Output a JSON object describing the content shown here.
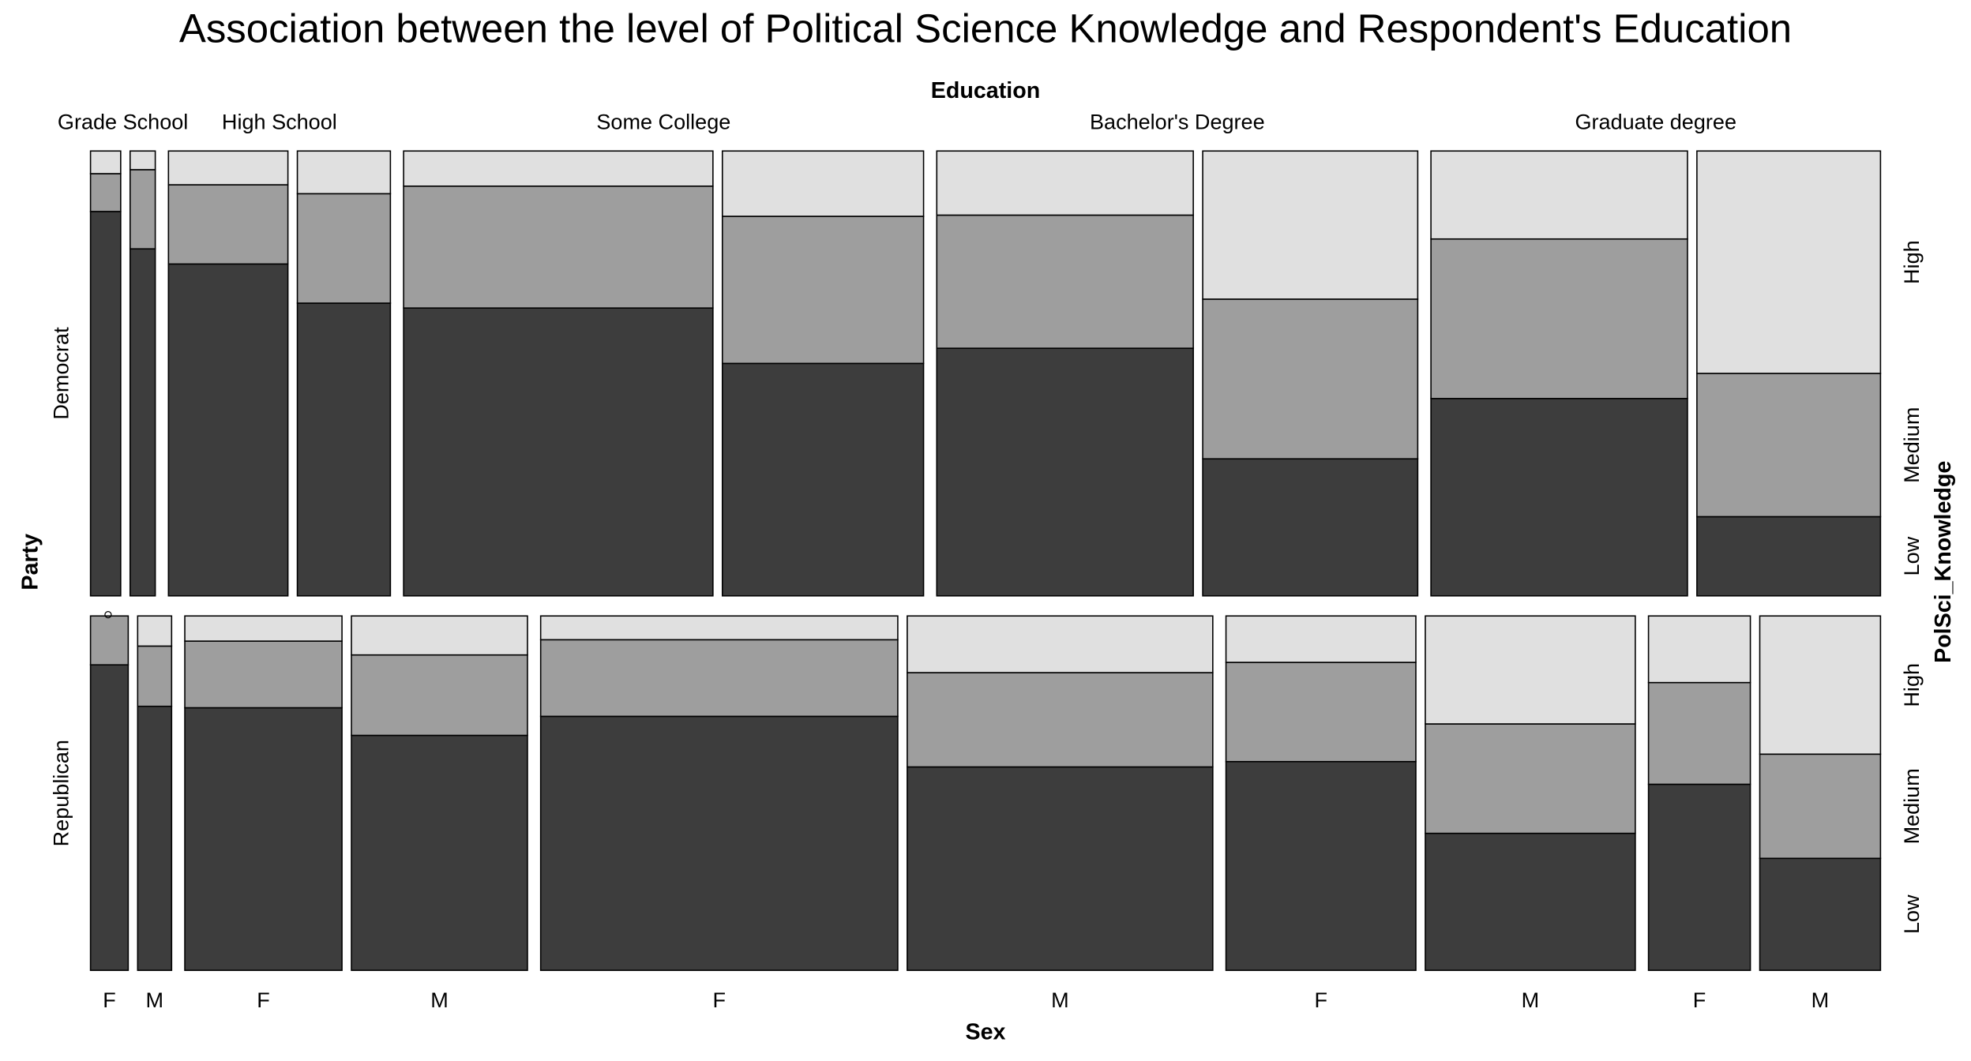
{
  "chart_data": {
    "type": "mosaic",
    "title": "Association between the level of Political Science Knowledge and Respondent's Education",
    "x_label": "Education",
    "x2_label": "Sex",
    "y_label": "Party",
    "z_label": "PolSci_Knowledge",
    "education": [
      "Grade School",
      "High School",
      "Some College",
      "Bachelor's Degree",
      "Graduate degree"
    ],
    "sexes": [
      "F",
      "M"
    ],
    "levels": [
      "Low",
      "Medium",
      "High"
    ],
    "colors": [
      "#3d3d3d",
      "#9e9e9e",
      "#e0e0e0"
    ],
    "parties": [
      {
        "name": "Democrat",
        "cells": [
          [
            {
              "weight": 24,
              "values": [
                86.4,
                8.5,
                5.1
              ]
            },
            {
              "weight": 20,
              "values": [
                78.0,
                17.8,
                4.2
              ]
            }
          ],
          [
            {
              "weight": 95,
              "values": [
                74.6,
                17.8,
                7.6
              ]
            },
            {
              "weight": 74,
              "values": [
                65.8,
                24.6,
                9.6
              ]
            }
          ],
          [
            {
              "weight": 246,
              "values": [
                64.7,
                27.4,
                7.9
              ]
            },
            {
              "weight": 160,
              "values": [
                52.3,
                33.1,
                14.7
              ]
            }
          ],
          [
            {
              "weight": 204,
              "values": [
                55.6,
                29.9,
                14.4
              ]
            },
            {
              "weight": 171,
              "values": [
                30.8,
                35.9,
                33.3
              ]
            }
          ],
          [
            {
              "weight": 204,
              "values": [
                44.4,
                35.9,
                19.8
              ]
            },
            {
              "weight": 146,
              "values": [
                17.8,
                32.2,
                50.0
              ]
            }
          ]
        ]
      },
      {
        "name": "Republican",
        "cells": [
          [
            {
              "weight": 30,
              "values": [
                86.2,
                13.8,
                0
              ]
            },
            {
              "weight": 27,
              "values": [
                74.5,
                17.0,
                8.5
              ]
            }
          ],
          [
            {
              "weight": 125,
              "values": [
                74.1,
                18.8,
                7.1
              ]
            },
            {
              "weight": 140,
              "values": [
                66.3,
                22.7,
                11.0
              ]
            }
          ],
          [
            {
              "weight": 284,
              "values": [
                71.6,
                21.6,
                6.7
              ]
            },
            {
              "weight": 243,
              "values": [
                57.4,
                26.6,
                16.0
              ]
            }
          ],
          [
            {
              "weight": 151,
              "values": [
                58.9,
                28.0,
                13.1
              ]
            },
            {
              "weight": 167,
              "values": [
                38.7,
                30.9,
                30.5
              ]
            }
          ],
          [
            {
              "weight": 81,
              "values": [
                52.5,
                28.7,
                18.8
              ]
            },
            {
              "weight": 96,
              "values": [
                31.6,
                29.4,
                39.0
              ]
            }
          ]
        ]
      }
    ]
  }
}
